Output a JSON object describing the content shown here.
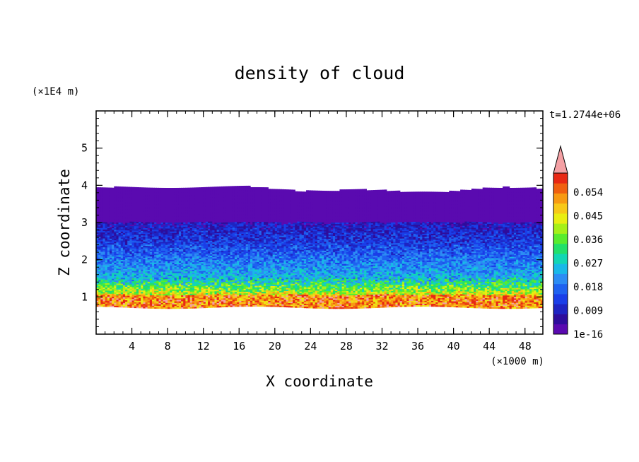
{
  "chart_data": {
    "type": "heatmap",
    "title": "density of cloud",
    "xlabel": "X coordinate",
    "ylabel": "Z coordinate",
    "x_unit": "(×1000 m)",
    "y_unit": "(×1E4 m)",
    "time_label": "t=1.2744e+06",
    "xlim": [
      0,
      50
    ],
    "ylim": [
      0,
      6
    ],
    "x_ticks": [
      "4",
      "8",
      "12",
      "16",
      "20",
      "24",
      "28",
      "32",
      "36",
      "40",
      "44",
      "48"
    ],
    "y_ticks": [
      "1",
      "2",
      "3",
      "4",
      "5"
    ],
    "colorbar": {
      "labels": [
        "1e-16",
        "0.009",
        "0.018",
        "0.027",
        "0.036",
        "0.045",
        "0.054"
      ],
      "colors": [
        "#5a0ab0",
        "#2e0d9c",
        "#1e24c2",
        "#1a3ee8",
        "#1f62f0",
        "#2c8cf4",
        "#19b8e8",
        "#12d6b4",
        "#22e06a",
        "#58ec2e",
        "#a6f018",
        "#e9ee12",
        "#f7c818",
        "#f79a12",
        "#f06010",
        "#e82814",
        "#f4a0a4"
      ],
      "extend": "max"
    },
    "cloud_layers": [
      {
        "z_bottom": 3.0,
        "z_top": 3.95,
        "level": "1e-16"
      },
      {
        "z_bottom": 2.4,
        "z_top": 3.0,
        "level": "0.009"
      },
      {
        "z_bottom": 1.5,
        "z_top": 2.4,
        "level": "0.018"
      },
      {
        "z_bottom": 1.05,
        "z_top": 1.5,
        "level": "0.027"
      },
      {
        "z_bottom": 0.75,
        "z_top": 1.05,
        "level": "0.054"
      }
    ]
  }
}
